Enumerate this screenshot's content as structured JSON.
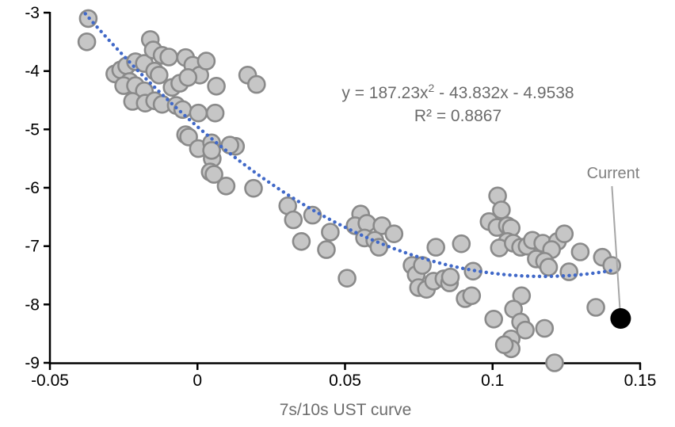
{
  "equation": {
    "prefix": "y = 187.23x",
    "sup": "2",
    "suffix": " - 43.832x - 4.9538",
    "r_squared": "R² = 0.8867"
  },
  "annotation": {
    "current_label": "Current"
  },
  "x_axis": {
    "label": "7s/10s UST curve",
    "ticks": [
      "-0.05",
      "0",
      "0.05",
      "0.1",
      "0.15"
    ]
  },
  "y_axis": {
    "ticks": [
      "-3",
      "-4",
      "-5",
      "-6",
      "-7",
      "-8",
      "-9"
    ]
  },
  "colors": {
    "point_fill": "#c6c6c6",
    "point_stroke": "#8a8a8a",
    "trend": "#4169c8",
    "current_point": "#000000",
    "leader_line": "#a6a6a6",
    "axis": "#000000",
    "gray_text": "#6b6b6b"
  },
  "chart_data": {
    "type": "scatter",
    "title": "",
    "xlabel": "7s/10s UST curve",
    "ylabel": "",
    "xlim": [
      -0.05,
      0.15
    ],
    "ylim": [
      -9,
      -3
    ],
    "grid": false,
    "legend": "none",
    "trendline": {
      "kind": "quadratic",
      "a": 187.23,
      "b": -43.832,
      "c": -4.9538,
      "equation": "y = 187.23x2 - 43.832x - 4.9538",
      "r2": 0.8867,
      "x_start": -0.038,
      "x_end": 0.141,
      "style": "dotted"
    },
    "points": [
      [
        -0.037,
        -3.1
      ],
      [
        -0.0375,
        -3.5
      ],
      [
        -0.016,
        -3.46
      ],
      [
        -0.028,
        -4.05
      ],
      [
        -0.026,
        -3.98
      ],
      [
        -0.024,
        -3.91
      ],
      [
        -0.021,
        -3.84
      ],
      [
        -0.018,
        -3.87
      ],
      [
        -0.015,
        -3.64
      ],
      [
        -0.012,
        -3.73
      ],
      [
        -0.0097,
        -3.76
      ],
      [
        -0.0145,
        -4.0
      ],
      [
        -0.013,
        -4.07
      ],
      [
        -0.023,
        -4.18
      ],
      [
        -0.025,
        -4.25
      ],
      [
        -0.021,
        -4.25
      ],
      [
        -0.018,
        -4.34
      ],
      [
        -0.022,
        -4.52
      ],
      [
        -0.0177,
        -4.55
      ],
      [
        -0.0145,
        -4.51
      ],
      [
        -0.012,
        -4.57
      ],
      [
        -0.0086,
        -4.28
      ],
      [
        -0.006,
        -4.21
      ],
      [
        -0.004,
        -3.77
      ],
      [
        -0.0016,
        -3.9
      ],
      [
        0.0008,
        -4.07
      ],
      [
        -0.0032,
        -4.11
      ],
      [
        -0.0072,
        -4.59
      ],
      [
        -0.005,
        -4.66
      ],
      [
        0.0003,
        -4.72
      ],
      [
        0.006,
        -4.72
      ],
      [
        0.0064,
        -4.26
      ],
      [
        0.003,
        -3.83
      ],
      [
        0.017,
        -4.07
      ],
      [
        0.02,
        -4.23
      ],
      [
        -0.004,
        -5.09
      ],
      [
        -0.003,
        -5.13
      ],
      [
        0.0003,
        -5.33
      ],
      [
        0.0048,
        -5.23
      ],
      [
        0.0129,
        -5.29
      ],
      [
        0.005,
        -5.5
      ],
      [
        0.0043,
        -5.73
      ],
      [
        0.0056,
        -5.77
      ],
      [
        0.0097,
        -5.97
      ],
      [
        0.019,
        -6.01
      ],
      [
        0.011,
        -5.27
      ],
      [
        0.0048,
        -5.36
      ],
      [
        0.0306,
        -6.31
      ],
      [
        0.0325,
        -6.55
      ],
      [
        0.039,
        -6.47
      ],
      [
        0.0352,
        -6.92
      ],
      [
        0.045,
        -6.76
      ],
      [
        0.0437,
        -7.06
      ],
      [
        0.0507,
        -7.55
      ],
      [
        0.0553,
        -6.45
      ],
      [
        0.0534,
        -6.65
      ],
      [
        0.0574,
        -6.61
      ],
      [
        0.0625,
        -6.65
      ],
      [
        0.0666,
        -6.79
      ],
      [
        0.0566,
        -6.86
      ],
      [
        0.0601,
        -6.9
      ],
      [
        0.0615,
        -7.02
      ],
      [
        0.0727,
        -7.33
      ],
      [
        0.0741,
        -7.49
      ],
      [
        0.0762,
        -7.33
      ],
      [
        0.0749,
        -7.71
      ],
      [
        0.0776,
        -7.74
      ],
      [
        0.08,
        -7.6
      ],
      [
        0.0835,
        -7.56
      ],
      [
        0.0854,
        -7.63
      ],
      [
        0.0857,
        -7.53
      ],
      [
        0.0907,
        -7.9
      ],
      [
        0.0929,
        -7.85
      ],
      [
        0.0934,
        -7.43
      ],
      [
        0.0808,
        -7.02
      ],
      [
        0.0894,
        -6.96
      ],
      [
        0.1017,
        -6.14
      ],
      [
        0.103,
        -6.38
      ],
      [
        0.0988,
        -6.58
      ],
      [
        0.1015,
        -6.68
      ],
      [
        0.105,
        -6.65
      ],
      [
        0.1063,
        -6.69
      ],
      [
        0.105,
        -6.92
      ],
      [
        0.1023,
        -7.03
      ],
      [
        0.107,
        -6.95
      ],
      [
        0.1095,
        -7.02
      ],
      [
        0.1117,
        -7.0
      ],
      [
        0.1135,
        -6.9
      ],
      [
        0.117,
        -6.95
      ],
      [
        0.122,
        -6.92
      ],
      [
        0.1243,
        -6.79
      ],
      [
        0.12,
        -7.06
      ],
      [
        0.1148,
        -7.22
      ],
      [
        0.1176,
        -7.26
      ],
      [
        0.119,
        -7.36
      ],
      [
        0.1259,
        -7.44
      ],
      [
        0.1297,
        -7.1
      ],
      [
        0.1372,
        -7.19
      ],
      [
        0.1404,
        -7.33
      ],
      [
        0.1098,
        -7.85
      ],
      [
        0.1071,
        -8.08
      ],
      [
        0.1004,
        -8.25
      ],
      [
        0.1095,
        -8.3
      ],
      [
        0.1111,
        -8.44
      ],
      [
        0.1176,
        -8.41
      ],
      [
        0.1063,
        -8.59
      ],
      [
        0.1063,
        -8.76
      ],
      [
        0.104,
        -8.69
      ],
      [
        0.121,
        -9.0
      ],
      [
        0.135,
        -8.05
      ]
    ],
    "current_point": {
      "x": 0.1434,
      "y": -8.24,
      "label": "Current"
    }
  }
}
